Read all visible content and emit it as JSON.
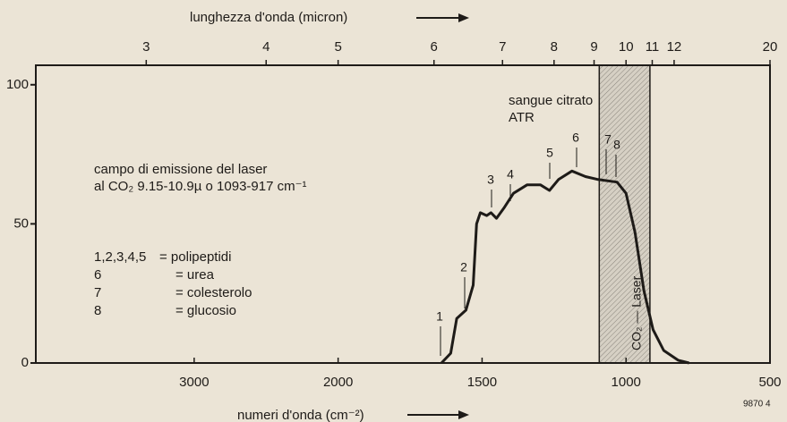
{
  "chart_data": {
    "type": "line",
    "x_label": "numeri d'onda (cm⁻²)",
    "x2_label": "lunghezza d'onda (micron)",
    "xlim": [
      4100,
      500
    ],
    "x_scale": {
      "break": 2000,
      "factor": 2
    },
    "xticks": [
      3000,
      2000,
      1500,
      1000,
      500
    ],
    "x2ticks": [
      {
        "value": 3333,
        "label": "3"
      },
      {
        "value": 2500,
        "label": "4"
      },
      {
        "value": 2000,
        "label": "5"
      },
      {
        "value": 1667,
        "label": "6"
      },
      {
        "value": 1429,
        "label": "7"
      },
      {
        "value": 1250,
        "label": "8"
      },
      {
        "value": 1111,
        "label": "9"
      },
      {
        "value": 1000,
        "label": "10"
      },
      {
        "value": 909,
        "label": "11"
      },
      {
        "value": 833,
        "label": "12"
      },
      {
        "value": 500,
        "label": "20"
      }
    ],
    "ylim": [
      0,
      107
    ],
    "yticks": [
      0,
      50,
      100
    ],
    "color": "#1e1b18",
    "x": [
      1641,
      1609,
      1588,
      1556,
      1531,
      1519,
      1506,
      1484,
      1469,
      1450,
      1422,
      1391,
      1344,
      1297,
      1266,
      1234,
      1188,
      1141,
      1100,
      1031,
      1000,
      969,
      938,
      906,
      869,
      819,
      781
    ],
    "values": [
      0,
      3.5,
      16,
      19,
      28,
      50,
      54,
      53,
      54,
      52,
      56,
      61,
      64,
      64,
      62,
      66,
      69,
      67,
      66,
      65,
      61,
      47,
      26,
      12,
      4.5,
      1,
      0
    ],
    "laser_band": [
      1093,
      917
    ],
    "laser_label": "CO₂ — Laser",
    "sample": [
      "sangue citrato",
      "ATR"
    ],
    "emission_note": [
      "campo di emissione del laser",
      "al CO₂ 9.15-10.9µ o 1093-917 cm⁻¹"
    ],
    "peak_labels": [
      "1",
      "2",
      "3",
      "4",
      "5",
      "6",
      "7",
      "8"
    ],
    "legend": [
      {
        "key": "1,2,3,4,5",
        "text": "= polipeptidi"
      },
      {
        "key": "6",
        "text": "= urea"
      },
      {
        "key": "7",
        "text": "= colesterolo"
      },
      {
        "key": "8",
        "text": "= glucosio"
      }
    ],
    "figure_code": "9870 4"
  }
}
